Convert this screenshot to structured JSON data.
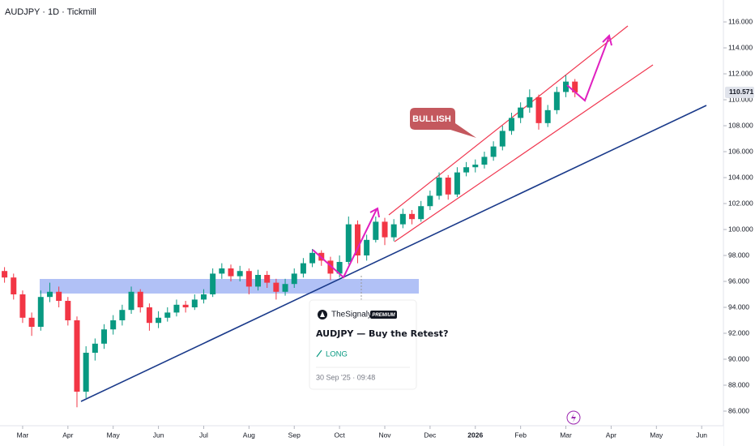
{
  "header": {
    "symbol": "AUDJPY · 1D · Tickmill"
  },
  "chart_data": {
    "type": "candlestick",
    "x": [
      -0.4,
      -0.2,
      0,
      0.2,
      0.4,
      0.6,
      0.8,
      1.0,
      1.2,
      1.4,
      1.6,
      1.8,
      2.0,
      2.2,
      2.4,
      2.6,
      2.8,
      3.0,
      3.2,
      3.4,
      3.6,
      3.8,
      4.0,
      4.2,
      4.4,
      4.6,
      4.8,
      5.0,
      5.2,
      5.4,
      5.6,
      5.8,
      6.0,
      6.2,
      6.4,
      6.6,
      6.8,
      7.0,
      7.2,
      7.4,
      7.6,
      7.8,
      8.0,
      8.2,
      8.4,
      8.6,
      8.8,
      9.0,
      9.2,
      9.4,
      9.6,
      9.8,
      10.0,
      10.2,
      10.4,
      10.6,
      10.8,
      11.0,
      11.2,
      11.4,
      11.6,
      11.8,
      12.0,
      12.2
    ],
    "open": [
      96.8,
      96.3,
      95.0,
      93.2,
      92.5,
      94.8,
      95.2,
      94.5,
      93.0,
      87.5,
      90.5,
      91.2,
      92.3,
      93.0,
      93.8,
      95.2,
      94.0,
      92.8,
      93.2,
      93.6,
      94.2,
      94.0,
      94.6,
      95.0,
      96.6,
      97.0,
      96.4,
      96.8,
      95.6,
      96.5,
      95.9,
      95.2,
      95.8,
      96.6,
      97.4,
      98.2,
      97.6,
      96.6,
      97.5,
      100.4,
      98.0,
      99.2,
      100.6,
      99.4,
      100.4,
      101.2,
      100.8,
      101.8,
      102.6,
      104.0,
      102.7,
      104.4,
      104.8,
      105.0,
      105.6,
      106.4,
      107.6,
      108.6,
      109.4,
      110.2,
      108.2,
      109.2,
      110.6,
      111.4
    ],
    "high": [
      97.1,
      96.6,
      95.3,
      93.6,
      95.3,
      95.9,
      95.6,
      94.8,
      93.3,
      91.0,
      91.6,
      92.7,
      93.4,
      94.2,
      95.6,
      95.4,
      94.3,
      93.7,
      94.0,
      94.6,
      94.5,
      95.0,
      95.4,
      97.0,
      97.4,
      97.3,
      97.2,
      97.0,
      96.9,
      96.8,
      96.2,
      96.2,
      97.0,
      97.8,
      98.5,
      98.4,
      97.9,
      98.0,
      101.0,
      100.7,
      99.6,
      101.0,
      100.9,
      100.8,
      101.6,
      101.5,
      102.2,
      103.0,
      104.4,
      104.2,
      104.8,
      105.2,
      105.4,
      106.0,
      106.8,
      108.0,
      109.0,
      109.8,
      110.8,
      110.4,
      109.6,
      111.0,
      111.9,
      111.6
    ],
    "low": [
      95.9,
      94.6,
      92.8,
      91.8,
      92.2,
      94.4,
      94.0,
      92.6,
      86.3,
      87.0,
      89.9,
      90.8,
      91.9,
      92.6,
      93.5,
      93.6,
      92.2,
      92.4,
      92.9,
      93.3,
      93.6,
      93.8,
      94.3,
      94.8,
      96.2,
      96.0,
      96.0,
      95.0,
      95.3,
      95.5,
      94.6,
      94.9,
      95.5,
      96.3,
      97.1,
      97.2,
      96.1,
      96.3,
      97.3,
      97.4,
      97.6,
      99.0,
      98.8,
      99.1,
      100.1,
      100.4,
      100.6,
      101.5,
      102.3,
      102.3,
      102.5,
      104.1,
      104.4,
      104.7,
      105.3,
      106.1,
      107.3,
      108.2,
      109.0,
      107.7,
      107.9,
      108.9,
      110.2,
      110.2
    ],
    "close": [
      96.3,
      95.0,
      93.2,
      92.5,
      94.8,
      95.2,
      94.5,
      93.0,
      87.5,
      90.5,
      91.2,
      92.3,
      93.0,
      93.8,
      95.2,
      94.0,
      92.8,
      93.2,
      93.6,
      94.2,
      94.0,
      94.6,
      95.0,
      96.6,
      97.0,
      96.4,
      96.8,
      95.6,
      96.5,
      95.9,
      95.2,
      95.8,
      96.6,
      97.4,
      98.2,
      97.6,
      96.6,
      97.5,
      100.4,
      98.0,
      99.2,
      100.6,
      99.4,
      100.4,
      101.2,
      100.8,
      101.8,
      102.6,
      104.0,
      102.7,
      104.4,
      104.8,
      105.0,
      105.6,
      106.4,
      107.6,
      108.6,
      109.4,
      110.2,
      108.2,
      109.2,
      110.6,
      111.4,
      110.57
    ],
    "up_color": "#089981",
    "down_color": "#f23645",
    "xlim": [
      -0.5,
      15.48
    ],
    "ylim": [
      84.875,
      117.69
    ],
    "yticks": [
      {
        "value": 86,
        "label": "86.000"
      },
      {
        "value": 88,
        "label": "88.000"
      },
      {
        "value": 90,
        "label": "90.000"
      },
      {
        "value": 92,
        "label": "92.000"
      },
      {
        "value": 94,
        "label": "94.000"
      },
      {
        "value": 96,
        "label": "96.000"
      },
      {
        "value": 98,
        "label": "98.000"
      },
      {
        "value": 100,
        "label": "100.000"
      },
      {
        "value": 102,
        "label": "102.000"
      },
      {
        "value": 104,
        "label": "104.000"
      },
      {
        "value": 106,
        "label": "106.000"
      },
      {
        "value": 108,
        "label": "108.000"
      },
      {
        "value": 110,
        "label": "110.000"
      },
      {
        "value": 112,
        "label": "112.000"
      },
      {
        "value": 114,
        "label": "114.000"
      },
      {
        "value": 116,
        "label": "116.000"
      }
    ],
    "xticks": [
      {
        "value": 0,
        "label": "Mar"
      },
      {
        "value": 1,
        "label": "Apr"
      },
      {
        "value": 2,
        "label": "May"
      },
      {
        "value": 3,
        "label": "Jun"
      },
      {
        "value": 4,
        "label": "Jul"
      },
      {
        "value": 5,
        "label": "Aug"
      },
      {
        "value": 6,
        "label": "Sep"
      },
      {
        "value": 7,
        "label": "Oct"
      },
      {
        "value": 8,
        "label": "Nov"
      },
      {
        "value": 9,
        "label": "Dec"
      },
      {
        "value": 10,
        "label": "2026"
      },
      {
        "value": 11,
        "label": "Feb"
      },
      {
        "value": 12,
        "label": "Mar"
      },
      {
        "value": 13,
        "label": "Apr"
      },
      {
        "value": 14,
        "label": "May"
      },
      {
        "value": 15,
        "label": "Jun"
      }
    ],
    "last_price": 110.571,
    "callout": "BULLISH"
  },
  "idea_card": {
    "author": "TheSignalyst",
    "badge": "PREMIUM",
    "title": "AUDJPY — Buy the Retest?",
    "direction": "LONG",
    "date": "30 Sep '25 · 09:48"
  }
}
